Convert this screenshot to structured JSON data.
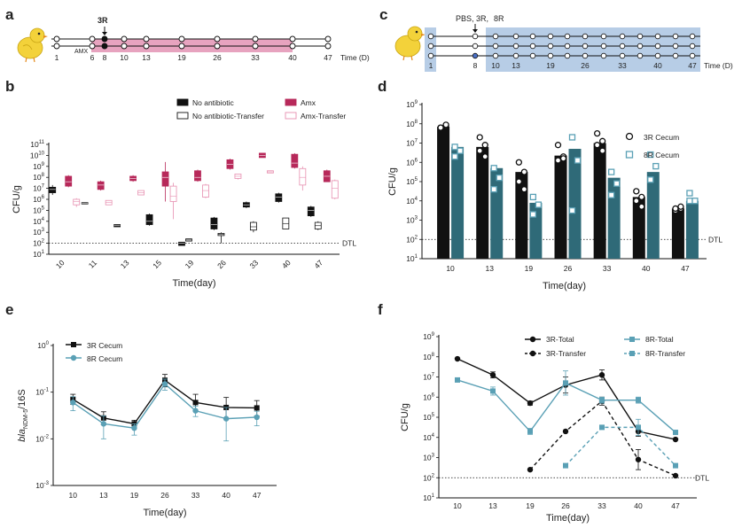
{
  "panel_labels": [
    "a",
    "b",
    "c",
    "d",
    "e",
    "f"
  ],
  "colors": {
    "pink": "#b7295a",
    "pink_light": "#e78fb0",
    "pink_band": "#e7a3bf",
    "teal": "#2f6a78",
    "teal_light": "#5aa0b5",
    "blue_band": "#b7cde6",
    "blue_text": "#3b5aa8",
    "black": "#111111",
    "grey": "#555555"
  },
  "timeline_a": {
    "ticks": [
      "1",
      "6",
      "8",
      "10",
      "13",
      "19",
      "26",
      "33",
      "40",
      "47"
    ],
    "axis_label": "Time (D)",
    "marker_label": "3R",
    "band_label": "AMX"
  },
  "timeline_c": {
    "ticks": [
      "1",
      "8",
      "10",
      "13",
      "19",
      "26",
      "33",
      "40",
      "47"
    ],
    "axis_label": "Time (D)",
    "marker_label_1": "PBS, 3R,",
    "marker_label_2": "8R"
  },
  "chart_data": [
    {
      "panel": "b",
      "type": "box",
      "ylabel": "CFU/g",
      "xlabel": "Time(day)",
      "yscale": "log10",
      "ylim_exp": [
        1,
        11
      ],
      "y_ticks_exp": [
        1,
        2,
        3,
        4,
        5,
        6,
        7,
        8,
        9,
        10,
        11
      ],
      "categories": [
        "10",
        "11",
        "13",
        "15",
        "19",
        "26",
        "33",
        "40",
        "47"
      ],
      "detection_limit_exp": 2,
      "detection_limit_label": "DTL",
      "legend": [
        "No antibiotic",
        "No antibiotic-Transfer",
        "Amx",
        "Amx-Transfer"
      ],
      "series": [
        {
          "name": "No antibiotic",
          "style": "filled-black",
          "boxes_exp": [
            [
              6.6,
              7.1,
              6.9,
              6.4,
              7.3
            ],
            [
              5.6,
              5.7,
              5.65,
              5.6,
              5.7
            ],
            [
              3.5,
              3.7,
              3.6,
              3.5,
              3.7
            ],
            [
              3.7,
              4.6,
              4.0,
              3.6,
              4.7
            ],
            [
              1.8,
              2.1,
              2.0,
              1.8,
              2.1
            ],
            [
              3.3,
              4.3,
              3.7,
              3.2,
              4.4
            ],
            [
              5.3,
              5.7,
              5.5,
              5.2,
              5.8
            ],
            [
              5.8,
              6.5,
              6.2,
              5.7,
              6.6
            ],
            [
              4.5,
              5.3,
              5.0,
              4.4,
              5.4
            ]
          ]
        },
        {
          "name": "No antibiotic-Transfer",
          "style": "open-black",
          "boxes_exp": [
            null,
            null,
            null,
            null,
            [
              2.2,
              2.4,
              2.3,
              2.3,
              2.3
            ],
            [
              2.7,
              2.9,
              2.8,
              2.0,
              3.0
            ],
            [
              3.2,
              3.9,
              3.5,
              3.0,
              4.0
            ],
            [
              3.3,
              4.3,
              3.8,
              3.3,
              4.3
            ],
            [
              3.3,
              3.9,
              3.6,
              3.2,
              4.0
            ]
          ]
        },
        {
          "name": "Amx",
          "style": "filled-pink",
          "boxes_exp": [
            [
              7.2,
              8.1,
              7.6,
              7.1,
              8.2
            ],
            [
              6.9,
              7.6,
              7.3,
              6.8,
              7.7
            ],
            [
              7.7,
              8.1,
              7.9,
              7.6,
              8.2
            ],
            [
              7.2,
              8.5,
              8.0,
              5.8,
              9.4
            ],
            [
              7.7,
              8.6,
              8.0,
              7.6,
              8.7
            ],
            [
              8.8,
              9.6,
              9.2,
              8.7,
              9.7
            ],
            [
              9.8,
              10.2,
              10.0,
              9.8,
              10.2
            ],
            [
              8.9,
              10.1,
              9.3,
              8.8,
              10.2
            ],
            [
              7.6,
              8.6,
              8.1,
              7.6,
              8.7
            ]
          ]
        },
        {
          "name": "Amx-Transfer",
          "style": "open-pink",
          "boxes_exp": [
            [
              5.5,
              6.0,
              5.8,
              5.3,
              6.1
            ],
            [
              5.5,
              5.9,
              5.7,
              5.5,
              5.9
            ],
            [
              6.4,
              6.8,
              6.6,
              6.4,
              6.8
            ],
            [
              5.8,
              7.2,
              6.3,
              4.2,
              7.5
            ],
            [
              6.2,
              7.3,
              6.8,
              6.1,
              7.4
            ],
            [
              7.9,
              8.3,
              8.1,
              7.8,
              8.3
            ],
            [
              8.4,
              8.6,
              8.5,
              8.4,
              8.6
            ],
            [
              7.3,
              8.8,
              8.0,
              6.8,
              9.0
            ],
            [
              6.1,
              7.7,
              7.0,
              6.0,
              7.8
            ]
          ]
        }
      ]
    },
    {
      "panel": "d",
      "type": "bar",
      "ylabel": "CFU/g",
      "xlabel": "Time(day)",
      "yscale": "log10",
      "ylim_exp": [
        1,
        9
      ],
      "y_ticks_exp": [
        1,
        2,
        3,
        4,
        5,
        6,
        7,
        8,
        9
      ],
      "categories": [
        "10",
        "13",
        "19",
        "26",
        "33",
        "40",
        "47"
      ],
      "detection_limit_exp": 2,
      "detection_limit_label": "DTL",
      "series": [
        {
          "name": "3R Cecum",
          "marker": "circle",
          "values_exp": [
            7.85,
            6.8,
            5.5,
            6.35,
            7.0,
            4.2,
            3.6
          ],
          "points_exp": [
            [
              7.8,
              7.9,
              7.8,
              7.95
            ],
            [
              7.3,
              6.9,
              6.6,
              6.3
            ],
            [
              6.0,
              5.5,
              5.0,
              4.6
            ],
            [
              6.9,
              6.3,
              6.1,
              6.2
            ],
            [
              7.5,
              7.1,
              6.9,
              6.6
            ],
            [
              4.5,
              4.2,
              4.0,
              3.7
            ],
            [
              3.5,
              3.6,
              3.6,
              3.7
            ]
          ]
        },
        {
          "name": "8R Cecum",
          "marker": "square",
          "values_exp": [
            6.8,
            5.7,
            3.9,
            6.7,
            5.2,
            5.5,
            4.0
          ],
          "points_exp": [
            [
              6.8,
              6.6,
              6.3
            ],
            [
              5.7,
              5.2,
              4.6
            ],
            [
              4.2,
              3.8,
              3.3
            ],
            [
              7.3,
              6.1,
              3.5
            ],
            [
              5.5,
              4.9,
              4.3
            ],
            [
              6.4,
              5.8,
              5.1
            ],
            [
              4.4,
              4.0,
              4.0
            ]
          ]
        }
      ]
    },
    {
      "panel": "e",
      "type": "line",
      "ylabel_main": "bla",
      "ylabel_sub": "NDM-5",
      "ylabel_rest": "/16S",
      "xlabel": "Time(day)",
      "yscale": "log10",
      "ylim_exp": [
        -3,
        0
      ],
      "y_ticks_exp": [
        -3,
        -2,
        -1,
        0
      ],
      "categories": [
        "10",
        "13",
        "19",
        "26",
        "33",
        "40",
        "47"
      ],
      "series": [
        {
          "name": "3R Cecum",
          "marker": "square",
          "values": [
            0.07,
            0.028,
            0.021,
            0.18,
            0.06,
            0.047,
            0.046
          ],
          "err_up": [
            0.02,
            0.01,
            0.004,
            0.06,
            0.03,
            0.03,
            0.02
          ],
          "err_dn": [
            0.015,
            0.008,
            0.004,
            0.05,
            0.02,
            0.02,
            0.015
          ]
        },
        {
          "name": "8R Cecum",
          "marker": "circle",
          "values": [
            0.06,
            0.021,
            0.017,
            0.15,
            0.04,
            0.027,
            0.029
          ],
          "err_up": [
            0.02,
            0.01,
            0.004,
            0.04,
            0.01,
            0.02,
            0.01
          ],
          "err_dn": [
            0.02,
            0.011,
            0.005,
            0.04,
            0.01,
            0.018,
            0.01
          ]
        }
      ]
    },
    {
      "panel": "f",
      "type": "line",
      "ylabel": "CFU/g",
      "xlabel": "Time(day)",
      "yscale": "log10",
      "ylim_exp": [
        1,
        9
      ],
      "y_ticks_exp": [
        1,
        2,
        3,
        4,
        5,
        6,
        7,
        8,
        9
      ],
      "categories": [
        "10",
        "13",
        "19",
        "26",
        "33",
        "40",
        "47"
      ],
      "detection_limit_exp": 2,
      "detection_limit_label": "DTL",
      "series": [
        {
          "name": "3R-Total",
          "marker": "circle",
          "dashed": false,
          "color": "black",
          "values_exp": [
            7.9,
            7.1,
            5.7,
            6.6,
            7.1,
            4.3,
            3.9
          ],
          "err_exp": [
            0,
            0.15,
            0.1,
            0.4,
            0.25,
            0.25,
            0
          ]
        },
        {
          "name": "3R-Transfer",
          "marker": "circle",
          "dashed": true,
          "color": "black",
          "values_exp": [
            null,
            null,
            2.4,
            4.3,
            5.8,
            2.9,
            2.1
          ],
          "err_exp": [
            0,
            0,
            0,
            0,
            0.2,
            0.5,
            0
          ]
        },
        {
          "name": "8R-Total",
          "marker": "square",
          "dashed": false,
          "color": "teal",
          "values_exp": [
            6.85,
            6.3,
            4.3,
            6.7,
            5.85,
            5.85,
            4.25
          ],
          "err_exp": [
            0,
            0.2,
            0.15,
            0.6,
            0.15,
            0.15,
            0
          ]
        },
        {
          "name": "8R-Transfer",
          "marker": "square",
          "dashed": true,
          "color": "teal",
          "values_exp": [
            null,
            null,
            null,
            2.6,
            4.5,
            4.5,
            2.6
          ],
          "err_exp": [
            0,
            0,
            0,
            0,
            0.1,
            0.4,
            0
          ]
        }
      ]
    }
  ]
}
